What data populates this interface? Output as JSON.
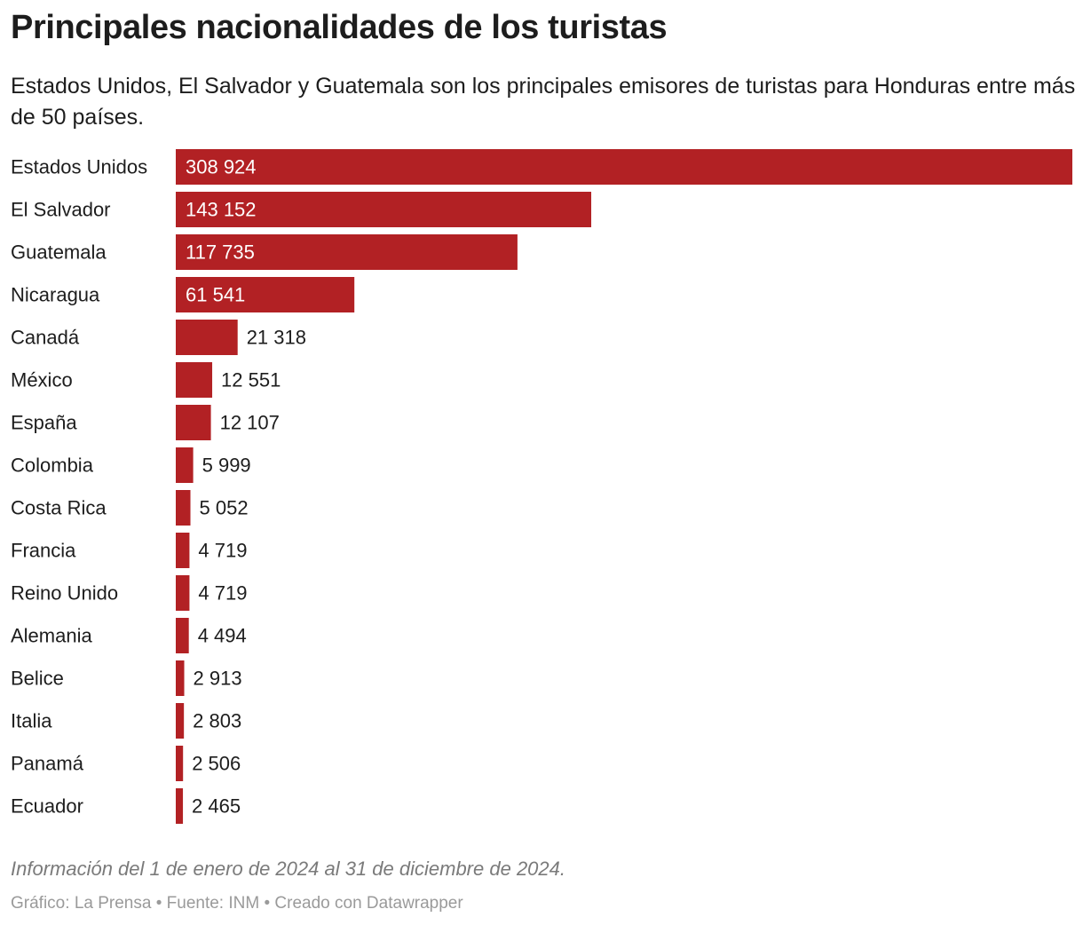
{
  "header": {
    "title": "Principales nacionalidades de los turistas",
    "subtitle": "Estados Unidos, El Salvador y Guatemala son los principales emisores de turistas para Honduras entre más de 50 países."
  },
  "footer": {
    "note": "Información del 1 de enero de 2024 al 31 de diciembre de 2024.",
    "credit_prefix": "Gráfico: ",
    "credit_chart": "La Prensa",
    "sep1": " • ",
    "source_prefix": "Fuente: ",
    "source": "INM",
    "sep2": " • ",
    "created_with": "Creado con Datawrapper"
  },
  "colors": {
    "bar": "#b22124",
    "label_inside": "#ffffff",
    "label_outside": "#1d1d1d"
  },
  "chart_data": {
    "type": "bar",
    "orientation": "horizontal",
    "title": "Principales nacionalidades de los turistas",
    "categories": [
      "Estados Unidos",
      "El Salvador",
      "Guatemala",
      "Nicaragua",
      "Canadá",
      "México",
      "España",
      "Colombia",
      "Costa Rica",
      "Francia",
      "Reino Unido",
      "Alemania",
      "Belice",
      "Italia",
      "Panamá",
      "Ecuador"
    ],
    "values": [
      308924,
      143152,
      117735,
      61541,
      21318,
      12551,
      12107,
      5999,
      5052,
      4719,
      4719,
      4494,
      2913,
      2803,
      2506,
      2465
    ],
    "value_labels": [
      "308 924",
      "143 152",
      "117 735",
      "61 541",
      "21 318",
      "12 551",
      "12 107",
      "5 999",
      "5 052",
      "4 719",
      "4 719",
      "4 494",
      "2 913",
      "2 803",
      "2 506",
      "2 465"
    ],
    "xlim": [
      0,
      308924
    ],
    "xlabel": "",
    "ylabel": "",
    "grid": false
  }
}
